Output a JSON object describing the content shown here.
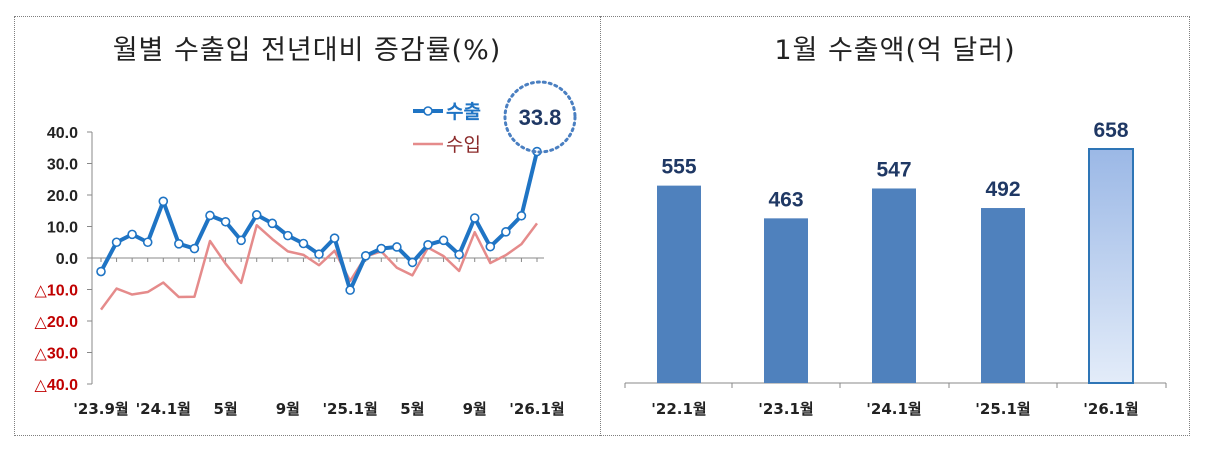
{
  "titles": {
    "left": "월별 수출입 전년대비 증감률(%)",
    "right": "1월 수출액(억 달러)"
  },
  "colors": {
    "export": "#1f74c4",
    "import": "#e58b8b",
    "negative_tick": "#c00000",
    "positive_tick": "#222222",
    "bar": "#4f81bd",
    "highlight_bar_top": "#9bb8e6",
    "highlight_bar_bottom": "#e3ecf9",
    "highlight_border": "#2e75b6",
    "callout_ring": "#4a7fc1"
  },
  "chart_data": [
    {
      "type": "line",
      "title": "월별 수출입 전년대비 증감률(%)",
      "ylim": [
        -40,
        40
      ],
      "y_ticks": [
        "40.0",
        "30.0",
        "20.0",
        "10.0",
        "0.0",
        "△10.0",
        "△20.0",
        "△30.0",
        "△40.0"
      ],
      "y_tick_values": [
        40,
        30,
        20,
        10,
        0,
        -10,
        -20,
        -30,
        -40
      ],
      "x_tick_labels": [
        {
          "index": 0,
          "label": "'23.9월"
        },
        {
          "index": 4,
          "label": "'24.1월"
        },
        {
          "index": 8,
          "label": "5월"
        },
        {
          "index": 12,
          "label": "9월"
        },
        {
          "index": 16,
          "label": "'25.1월"
        },
        {
          "index": 20,
          "label": "5월"
        },
        {
          "index": 24,
          "label": "9월"
        },
        {
          "index": 28,
          "label": "'26.1월"
        }
      ],
      "series": [
        {
          "name": "수출",
          "values": [
            -4.3,
            5.0,
            7.5,
            5.0,
            18.0,
            4.5,
            3.0,
            13.5,
            11.5,
            5.6,
            13.7,
            11.0,
            7.1,
            4.6,
            1.2,
            6.3,
            -10.2,
            0.7,
            3.0,
            3.5,
            -1.4,
            4.2,
            5.6,
            1.1,
            12.7,
            3.6,
            8.3,
            13.4,
            33.8
          ],
          "callout": {
            "index": 28,
            "label": "33.8"
          }
        },
        {
          "name": "수입",
          "values": [
            -16.4,
            -9.7,
            -11.6,
            -10.8,
            -7.8,
            -12.4,
            -12.3,
            5.4,
            -1.8,
            -7.9,
            10.4,
            6.0,
            2.1,
            1.0,
            -2.3,
            2.3,
            -7.3,
            0.5,
            2.1,
            -3.1,
            -5.5,
            3.3,
            0.6,
            -4.1,
            8.2,
            -1.6,
            0.9,
            4.4,
            11.0
          ]
        }
      ]
    },
    {
      "type": "bar",
      "title": "1월 수출액(억 달러)",
      "categories": [
        "'22.1월",
        "'23.1월",
        "'24.1월",
        "'25.1월",
        "'26.1월"
      ],
      "values": [
        555,
        463,
        547,
        492,
        658
      ],
      "labels": [
        "555",
        "463",
        "547",
        "492",
        "658"
      ],
      "highlight_index": 4
    }
  ]
}
